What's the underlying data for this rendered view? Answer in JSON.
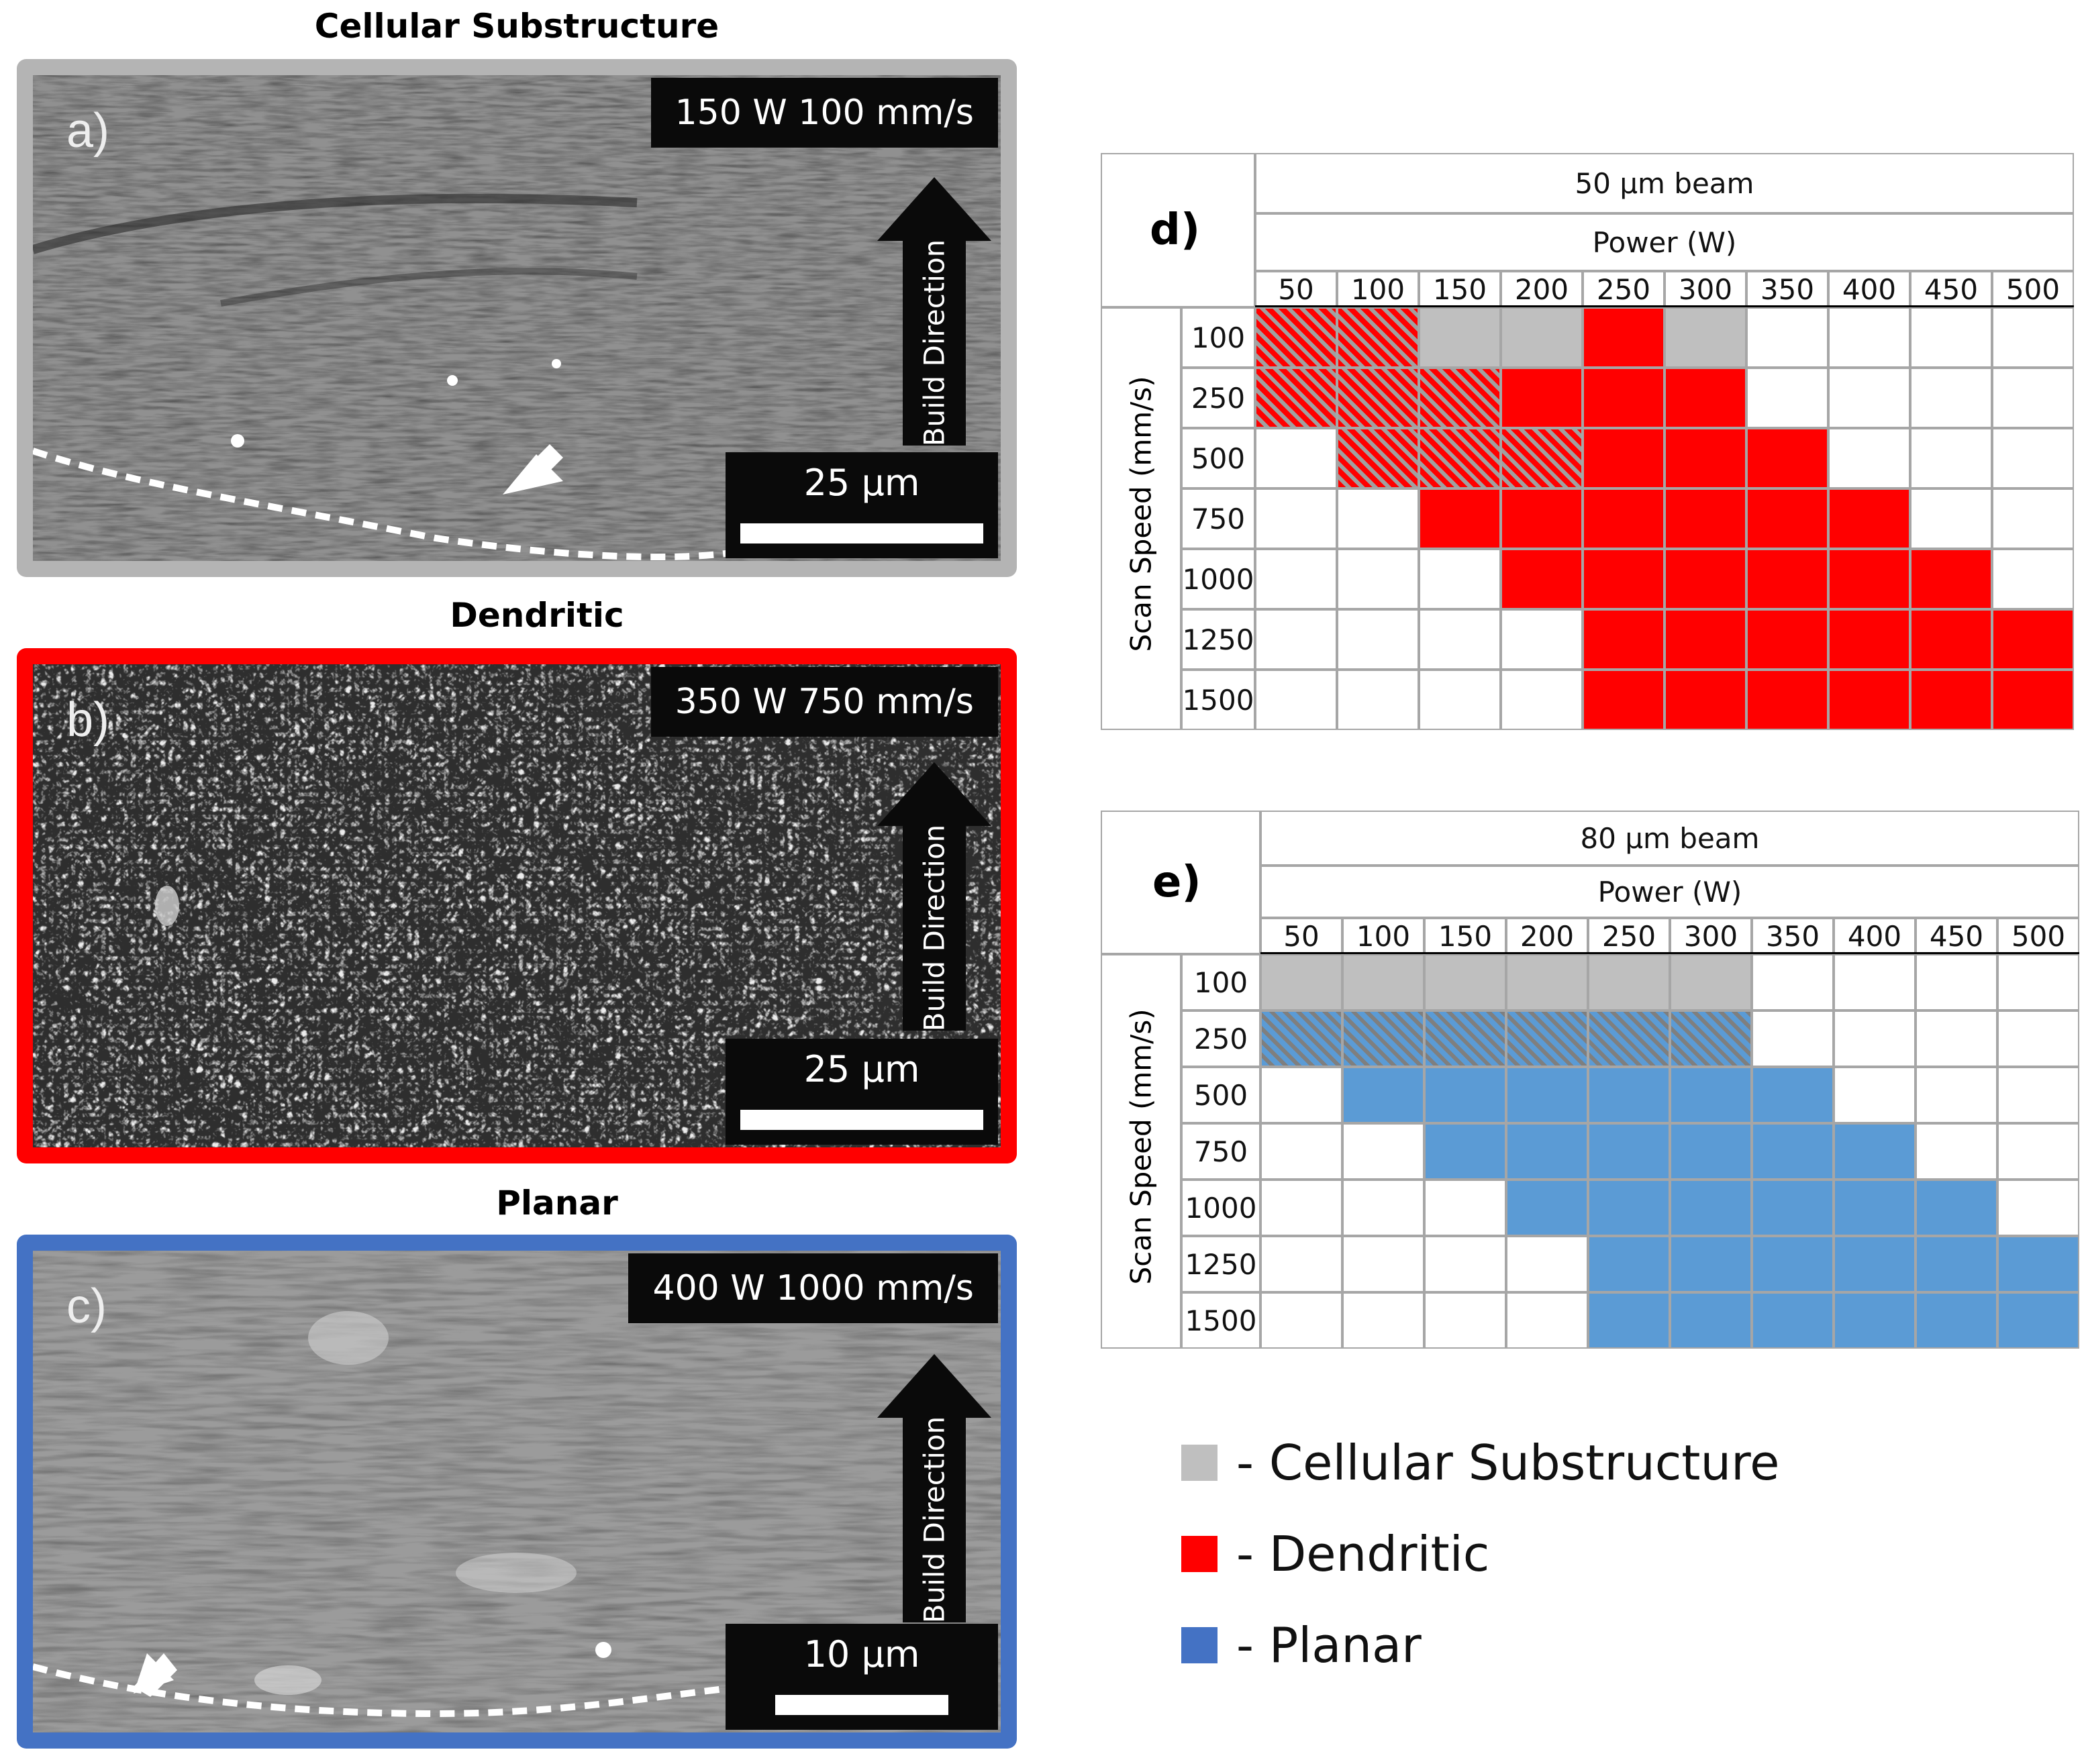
{
  "colors": {
    "cellular": "#bfbfbf",
    "dendritic": "#ff0000",
    "planar": "#5b9bd5",
    "frame_a": "#b4b4b4",
    "frame_b": "#ff0000",
    "frame_c": "#4472c4",
    "hatch_red_line": "#a0a0a0",
    "hatch_blue_line": "#7f7f7f"
  },
  "panels": [
    {
      "title": "Cellular Substructure",
      "letter": "a)",
      "conditions": "150 W 100 mm/s",
      "direction": "Build Direction",
      "scale": "25 μm"
    },
    {
      "title": "Dendritic",
      "letter": "b)",
      "conditions": "350 W 750 mm/s",
      "direction": "Build Direction",
      "scale": "25 μm"
    },
    {
      "title": "Planar",
      "letter": "c)",
      "conditions": "400 W 1000 mm/s",
      "direction": "Build Direction",
      "scale": "10 μm"
    }
  ],
  "tables": [
    {
      "label": "d)",
      "beam": "50 μm beam",
      "power_label": "Power (W)",
      "speed_label": "Scan Speed (mm/s)",
      "powers": [
        "50",
        "100",
        "150",
        "200",
        "250",
        "300",
        "350",
        "400",
        "450",
        "500"
      ],
      "speeds": [
        "100",
        "250",
        "500",
        "750",
        "1000",
        "1250",
        "1500"
      ],
      "grid": [
        [
          "RH",
          "RH",
          "C",
          "C",
          "R",
          "C",
          "W",
          "W",
          "W",
          "W"
        ],
        [
          "RH",
          "RH",
          "RH",
          "R",
          "R",
          "R",
          "W",
          "W",
          "W",
          "W"
        ],
        [
          "W",
          "RH",
          "RH",
          "RH",
          "R",
          "R",
          "R",
          "W",
          "W",
          "W"
        ],
        [
          "W",
          "W",
          "R",
          "R",
          "R",
          "R",
          "R",
          "R",
          "W",
          "W"
        ],
        [
          "W",
          "W",
          "W",
          "R",
          "R",
          "R",
          "R",
          "R",
          "R",
          "W"
        ],
        [
          "W",
          "W",
          "W",
          "W",
          "R",
          "R",
          "R",
          "R",
          "R",
          "R"
        ],
        [
          "W",
          "W",
          "W",
          "W",
          "R",
          "R",
          "R",
          "R",
          "R",
          "R"
        ]
      ]
    },
    {
      "label": "e)",
      "beam": "80 μm beam",
      "power_label": "Power (W)",
      "speed_label": "Scan Speed (mm/s)",
      "powers": [
        "50",
        "100",
        "150",
        "200",
        "250",
        "300",
        "350",
        "400",
        "450",
        "500"
      ],
      "speeds": [
        "100",
        "250",
        "500",
        "750",
        "1000",
        "1250",
        "1500"
      ],
      "grid": [
        [
          "C",
          "C",
          "C",
          "C",
          "C",
          "C",
          "W",
          "W",
          "W",
          "W"
        ],
        [
          "BH",
          "BH",
          "BH",
          "BH",
          "BH",
          "BH",
          "W",
          "W",
          "W",
          "W"
        ],
        [
          "W",
          "B",
          "B",
          "B",
          "B",
          "B",
          "B",
          "W",
          "W",
          "W"
        ],
        [
          "W",
          "W",
          "B",
          "B",
          "B",
          "B",
          "B",
          "B",
          "W",
          "W"
        ],
        [
          "W",
          "W",
          "W",
          "B",
          "B",
          "B",
          "B",
          "B",
          "B",
          "W"
        ],
        [
          "W",
          "W",
          "W",
          "W",
          "B",
          "B",
          "B",
          "B",
          "B",
          "B"
        ],
        [
          "W",
          "W",
          "W",
          "W",
          "B",
          "B",
          "B",
          "B",
          "B",
          "B"
        ]
      ]
    }
  ],
  "legend": [
    {
      "label": "- Cellular Substructure",
      "key": "cellular"
    },
    {
      "label": "- Dendritic",
      "key": "dendritic"
    },
    {
      "label": "- Planar",
      "key": "planar"
    }
  ]
}
